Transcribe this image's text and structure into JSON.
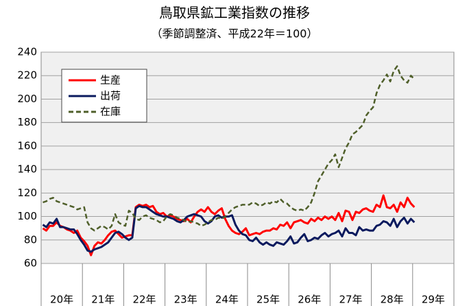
{
  "chart_data": {
    "type": "line",
    "title": "鳥取県鉱工業指数の推移",
    "subtitle": "（季節調整済、平成22年＝100）",
    "year_labels": [
      "20年",
      "21年",
      "22年",
      "23年",
      "24年",
      "25年",
      "26年",
      "27年",
      "28年",
      "29年"
    ],
    "ylim": [
      60,
      240
    ],
    "yticks": [
      60,
      80,
      100,
      120,
      140,
      160,
      180,
      200,
      220,
      240
    ],
    "grid": true,
    "series": [
      {
        "name": "生産",
        "color": "#ff0000",
        "dash": false,
        "values": [
          90,
          88,
          92,
          92,
          95,
          92,
          91,
          89,
          88,
          86,
          88,
          82,
          79,
          75,
          67,
          75,
          78,
          77,
          80,
          84,
          87,
          88,
          85,
          82,
          83,
          84,
          84,
          108,
          110,
          109,
          110,
          108,
          109,
          104,
          102,
          103,
          100,
          101,
          100,
          98,
          97,
          96,
          98,
          95,
          100,
          104,
          106,
          104,
          108,
          104,
          102,
          105,
          107,
          98,
          92,
          88,
          86,
          85,
          87,
          90,
          84,
          85,
          86,
          85,
          87,
          88,
          88,
          90,
          89,
          93,
          92,
          95,
          90,
          95,
          96,
          97,
          95,
          94,
          98,
          96,
          99,
          97,
          100,
          98,
          100,
          97,
          103,
          96,
          105,
          104,
          97,
          104,
          103,
          106,
          107,
          105,
          104,
          110,
          108,
          118,
          108,
          107,
          110,
          104,
          112,
          108,
          116,
          111,
          108
        ]
      },
      {
        "name": "出荷",
        "color": "#0a1a5e",
        "dash": false,
        "values": [
          93,
          91,
          95,
          94,
          98,
          91,
          91,
          90,
          89,
          89,
          85,
          80,
          76,
          71,
          70,
          72,
          73,
          74,
          76,
          78,
          82,
          86,
          87,
          85,
          82,
          80,
          82,
          107,
          109,
          108,
          108,
          106,
          104,
          102,
          101,
          100,
          100,
          99,
          98,
          96,
          95,
          97,
          100,
          101,
          102,
          101,
          100,
          96,
          94,
          96,
          100,
          101,
          99,
          100,
          100,
          101,
          93,
          88,
          85,
          84,
          80,
          79,
          82,
          78,
          76,
          78,
          76,
          75,
          78,
          77,
          76,
          79,
          83,
          77,
          78,
          82,
          85,
          79,
          80,
          82,
          81,
          84,
          86,
          83,
          85,
          86,
          88,
          83,
          90,
          86,
          86,
          84,
          91,
          88,
          89,
          88,
          88,
          92,
          93,
          96,
          95,
          92,
          98,
          91,
          96,
          99,
          94,
          98,
          95
        ]
      },
      {
        "name": "在庫",
        "color": "#4f5f2a",
        "dash": true,
        "values": [
          112,
          113,
          115,
          116,
          113,
          112,
          111,
          110,
          109,
          108,
          106,
          107,
          108,
          95,
          90,
          88,
          90,
          92,
          91,
          89,
          92,
          102,
          95,
          93,
          92,
          105,
          103,
          98,
          97,
          100,
          101,
          99,
          98,
          97,
          95,
          96,
          100,
          102,
          101,
          99,
          98,
          97,
          95,
          96,
          95,
          94,
          92,
          93,
          95,
          97,
          97,
          99,
          98,
          100,
          103,
          106,
          108,
          109,
          110,
          110,
          110,
          112,
          111,
          109,
          110,
          112,
          111,
          113,
          112,
          115,
          112,
          111,
          108,
          106,
          105,
          106,
          105,
          108,
          112,
          120,
          130,
          135,
          140,
          145,
          148,
          153,
          142,
          150,
          158,
          163,
          170,
          172,
          175,
          178,
          186,
          190,
          193,
          205,
          212,
          216,
          221,
          215,
          224,
          228,
          220,
          216,
          214,
          220,
          217
        ]
      }
    ]
  }
}
